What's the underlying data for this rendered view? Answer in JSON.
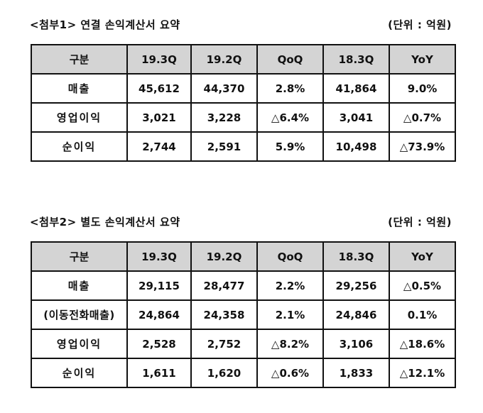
{
  "sections": [
    {
      "title": "<첨부1> 연결 손익계산서 요약",
      "unit": "(단위 : 억원)",
      "headers": [
        "구분",
        "19.3Q",
        "19.2Q",
        "QoQ",
        "18.3Q",
        "YoY"
      ],
      "rows": [
        [
          "매출",
          "45,612",
          "44,370",
          "2.8%",
          "41,864",
          "9.0%"
        ],
        [
          "영업이익",
          "3,021",
          "3,228",
          "△6.4%",
          "3,041",
          "△0.7%"
        ],
        [
          "순이익",
          "2,744",
          "2,591",
          "5.9%",
          "10,498",
          "△73.9%"
        ]
      ]
    },
    {
      "title": "<첨부2> 별도 손익계산서 요약",
      "unit": "(단위 : 억원)",
      "headers": [
        "구분",
        "19.3Q",
        "19.2Q",
        "QoQ",
        "18.3Q",
        "YoY"
      ],
      "rows": [
        [
          "매출",
          "29,115",
          "28,477",
          "2.2%",
          "29,256",
          "△0.5%"
        ],
        [
          "(이동전화매출)",
          "24,864",
          "24,358",
          "2.1%",
          "24,846",
          "0.1%"
        ],
        [
          "영업이익",
          "2,528",
          "2,752",
          "△8.2%",
          "3,106",
          "△18.6%"
        ],
        [
          "순이익",
          "1,611",
          "1,620",
          "△0.6%",
          "1,833",
          "△12.1%"
        ]
      ]
    }
  ]
}
